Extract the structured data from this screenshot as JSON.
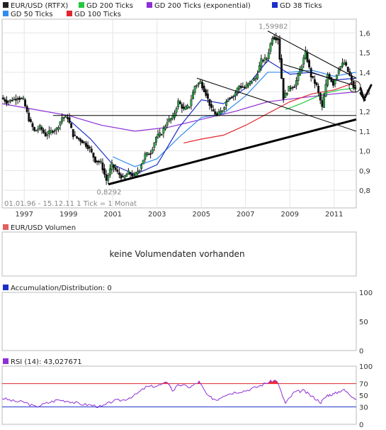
{
  "chart_data": [
    {
      "type": "candlestick",
      "legend": [
        {
          "name": "EUR/USD (RTFX)",
          "color": "#222222"
        },
        {
          "name": "GD 200 Ticks",
          "color": "#22c93b"
        },
        {
          "name": "GD 200 Ticks (exponential)",
          "color": "#8e2fd6"
        },
        {
          "name": "GD 38 Ticks",
          "color": "#1c2fc8"
        },
        {
          "name": "GD 50 Ticks",
          "color": "#2f8cf0"
        },
        {
          "name": "GD 100 Ticks",
          "color": "#e0262e"
        }
      ],
      "info_line": "01.01.96 - 15.12.11   1 Tick = 1 Monat",
      "x_ticks": [
        "1997",
        "1999",
        "2001",
        "2003",
        "2005",
        "2007",
        "2009",
        "2011"
      ],
      "x_tick_years": [
        1997,
        1999,
        2001,
        2003,
        2005,
        2007,
        2009,
        2011
      ],
      "y_ticks": [
        0.8,
        0.9,
        1.0,
        1.1,
        1.2,
        1.3,
        1.4,
        1.5,
        1.6
      ],
      "y_tick_labels": [
        "0,8",
        "0,9",
        "1,0",
        "1,1",
        "1,2",
        "1,3",
        "1,4",
        "1,5",
        "1,6"
      ],
      "ylim": [
        0.71,
        1.67
      ],
      "xlim": [
        1996.0,
        2012.0
      ],
      "annotations": [
        {
          "text": "1,59982",
          "x": 2008.25,
          "y": 1.59982
        },
        {
          "text": "0,8292",
          "x": 2000.83,
          "y": 0.8292
        }
      ],
      "price_path": [
        [
          1996.0,
          1.27
        ],
        [
          1996.25,
          1.25
        ],
        [
          1996.5,
          1.26
        ],
        [
          1996.75,
          1.27
        ],
        [
          1997.0,
          1.26
        ],
        [
          1997.25,
          1.16
        ],
        [
          1997.5,
          1.1
        ],
        [
          1997.75,
          1.12
        ],
        [
          1998.0,
          1.08
        ],
        [
          1998.25,
          1.1
        ],
        [
          1998.5,
          1.11
        ],
        [
          1998.75,
          1.17
        ],
        [
          1999.0,
          1.17
        ],
        [
          1999.25,
          1.08
        ],
        [
          1999.5,
          1.06
        ],
        [
          1999.75,
          1.04
        ],
        [
          2000.0,
          1.01
        ],
        [
          2000.25,
          0.95
        ],
        [
          2000.5,
          0.94
        ],
        [
          2000.75,
          0.85
        ],
        [
          2001.0,
          0.93
        ],
        [
          2001.25,
          0.89
        ],
        [
          2001.5,
          0.86
        ],
        [
          2001.75,
          0.89
        ],
        [
          2002.0,
          0.87
        ],
        [
          2002.25,
          0.91
        ],
        [
          2002.5,
          0.98
        ],
        [
          2002.75,
          0.99
        ],
        [
          2003.0,
          1.07
        ],
        [
          2003.25,
          1.09
        ],
        [
          2003.5,
          1.15
        ],
        [
          2003.75,
          1.17
        ],
        [
          2004.0,
          1.25
        ],
        [
          2004.25,
          1.21
        ],
        [
          2004.5,
          1.23
        ],
        [
          2004.75,
          1.33
        ],
        [
          2005.0,
          1.35
        ],
        [
          2005.25,
          1.29
        ],
        [
          2005.5,
          1.21
        ],
        [
          2005.75,
          1.18
        ],
        [
          2006.0,
          1.21
        ],
        [
          2006.25,
          1.27
        ],
        [
          2006.5,
          1.28
        ],
        [
          2006.75,
          1.33
        ],
        [
          2007.0,
          1.32
        ],
        [
          2007.25,
          1.35
        ],
        [
          2007.5,
          1.37
        ],
        [
          2007.75,
          1.46
        ],
        [
          2008.0,
          1.47
        ],
        [
          2008.25,
          1.58
        ],
        [
          2008.5,
          1.57
        ],
        [
          2008.75,
          1.27
        ],
        [
          2009.0,
          1.32
        ],
        [
          2009.25,
          1.33
        ],
        [
          2009.5,
          1.41
        ],
        [
          2009.75,
          1.5
        ],
        [
          2010.0,
          1.38
        ],
        [
          2010.25,
          1.33
        ],
        [
          2010.5,
          1.22
        ],
        [
          2010.75,
          1.39
        ],
        [
          2011.0,
          1.34
        ],
        [
          2011.25,
          1.42
        ],
        [
          2011.5,
          1.45
        ],
        [
          2011.75,
          1.38
        ],
        [
          2011.96,
          1.31
        ]
      ],
      "series_sma200": [
        [
          2008.8,
          1.21
        ],
        [
          2009.5,
          1.24
        ],
        [
          2010.5,
          1.29
        ],
        [
          2011.25,
          1.31
        ],
        [
          2012.0,
          1.32
        ]
      ],
      "series_ema200": [
        [
          1996.0,
          1.24
        ],
        [
          1997.5,
          1.21
        ],
        [
          1999.0,
          1.18
        ],
        [
          2000.5,
          1.13
        ],
        [
          2002.0,
          1.1
        ],
        [
          2003.5,
          1.12
        ],
        [
          2005.0,
          1.16
        ],
        [
          2006.5,
          1.2
        ],
        [
          2008.0,
          1.25
        ],
        [
          2009.5,
          1.27
        ],
        [
          2011.0,
          1.29
        ],
        [
          2012.0,
          1.3
        ]
      ],
      "series_sma100": [
        [
          2004.2,
          1.04
        ],
        [
          2005.0,
          1.06
        ],
        [
          2006.0,
          1.08
        ],
        [
          2007.0,
          1.13
        ],
        [
          2008.0,
          1.19
        ],
        [
          2009.0,
          1.25
        ],
        [
          2010.0,
          1.29
        ],
        [
          2011.0,
          1.31
        ],
        [
          2012.0,
          1.35
        ]
      ],
      "series_sma50": [
        [
          2001.0,
          0.97
        ],
        [
          2002.0,
          0.92
        ],
        [
          2003.0,
          0.96
        ],
        [
          2004.0,
          1.07
        ],
        [
          2005.0,
          1.17
        ],
        [
          2006.0,
          1.19
        ],
        [
          2007.0,
          1.28
        ],
        [
          2008.0,
          1.4
        ],
        [
          2009.0,
          1.4
        ],
        [
          2010.0,
          1.41
        ],
        [
          2011.0,
          1.38
        ],
        [
          2012.0,
          1.4
        ]
      ],
      "series_sma38": [
        [
          1999.0,
          1.16
        ],
        [
          2000.0,
          1.06
        ],
        [
          2001.0,
          0.93
        ],
        [
          2002.0,
          0.88
        ],
        [
          2003.0,
          0.93
        ],
        [
          2004.0,
          1.12
        ],
        [
          2005.0,
          1.26
        ],
        [
          2006.0,
          1.24
        ],
        [
          2007.0,
          1.32
        ],
        [
          2008.0,
          1.46
        ],
        [
          2009.0,
          1.39
        ],
        [
          2010.0,
          1.4
        ],
        [
          2011.0,
          1.36
        ],
        [
          2012.0,
          1.37
        ]
      ],
      "trendlines": [
        {
          "from": [
            2000.8,
            0.83
          ],
          "to": [
            2012.0,
            1.16
          ],
          "weight": "thick"
        },
        {
          "from": [
            1998.3,
            1.18
          ],
          "to": [
            2012.0,
            1.18
          ],
          "weight": "thin"
        },
        {
          "from": [
            2004.8,
            1.37
          ],
          "to": [
            2012.0,
            1.1
          ],
          "weight": "thin"
        },
        {
          "from": [
            2008.0,
            1.61
          ],
          "to": [
            2012.0,
            1.37
          ],
          "weight": "thin"
        },
        {
          "from": [
            2008.7,
            1.44
          ],
          "to": [
            2012.0,
            1.33
          ],
          "weight": "thin"
        }
      ]
    },
    {
      "type": "volume",
      "title": "EUR/USD Volumen",
      "message": "keine Volumendaten vorhanden"
    },
    {
      "type": "line",
      "title": "Accumulation/Distribution: 0",
      "y_ticks": [
        0,
        50,
        100
      ],
      "values": []
    },
    {
      "type": "line",
      "title": "RSI (14): 43,027671",
      "y_ticks": [
        0,
        30,
        50,
        70,
        100
      ],
      "overbought": 70,
      "oversold": 30,
      "values": [
        [
          1996.0,
          45
        ],
        [
          1996.5,
          40
        ],
        [
          1997.0,
          38
        ],
        [
          1997.5,
          30
        ],
        [
          1998.0,
          36
        ],
        [
          1998.5,
          42
        ],
        [
          1999.0,
          40
        ],
        [
          1999.5,
          35
        ],
        [
          2000.0,
          33
        ],
        [
          2000.5,
          30
        ],
        [
          2001.0,
          40
        ],
        [
          2001.5,
          42
        ],
        [
          2002.0,
          50
        ],
        [
          2002.5,
          64
        ],
        [
          2003.0,
          66
        ],
        [
          2003.5,
          72
        ],
        [
          2003.7,
          58
        ],
        [
          2004.0,
          68
        ],
        [
          2004.5,
          64
        ],
        [
          2004.9,
          73
        ],
        [
          2005.3,
          48
        ],
        [
          2005.7,
          42
        ],
        [
          2006.0,
          50
        ],
        [
          2006.5,
          55
        ],
        [
          2007.0,
          58
        ],
        [
          2007.5,
          64
        ],
        [
          2008.0,
          72
        ],
        [
          2008.4,
          76
        ],
        [
          2008.8,
          36
        ],
        [
          2009.2,
          55
        ],
        [
          2009.6,
          58
        ],
        [
          2010.0,
          48
        ],
        [
          2010.4,
          38
        ],
        [
          2010.7,
          50
        ],
        [
          2011.0,
          52
        ],
        [
          2011.4,
          60
        ],
        [
          2011.7,
          52
        ],
        [
          2012.0,
          43
        ]
      ]
    }
  ]
}
